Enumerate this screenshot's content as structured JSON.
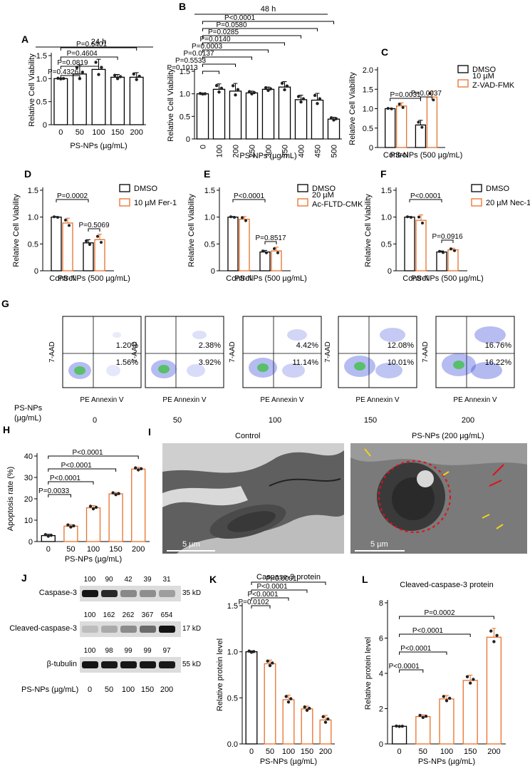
{
  "colors": {
    "dmso": "#000000",
    "treat": "#E8702A",
    "bar_fill": "#ffffff",
    "fill_k": "#ffffff",
    "flow_blue": "#2c3fd6",
    "em_bg": "#6a6a6a",
    "redline": "#e0101a",
    "yellow_arrow": "#f2d21b"
  },
  "panels": {
    "A": {
      "label": "A",
      "title": "24 h",
      "ylabel": "Relative Cell Viability",
      "xlabel": "PS-NPs (µg/mL)",
      "categories": [
        "0",
        "50",
        "100",
        "150",
        "200"
      ],
      "values": [
        1.0,
        1.1,
        1.2,
        1.03,
        1.03
      ],
      "errors": [
        0.01,
        0.2,
        0.22,
        0.06,
        0.1
      ],
      "ylim": [
        0,
        1.5
      ],
      "yticks": [
        "0",
        "0.5",
        "1.0",
        "1.5"
      ],
      "pvalues": [
        "P=0.4326",
        "P=0.0819",
        "P=0.4604",
        "P=0.6401"
      ]
    },
    "B": {
      "label": "B",
      "title": "48 h",
      "ylabel": "Relative Cell Viability",
      "xlabel": "PS-NPs (µg/mL)",
      "categories": [
        "0",
        "100",
        "200",
        "250",
        "300",
        "350",
        "400",
        "450",
        "500"
      ],
      "values": [
        1.0,
        1.1,
        1.06,
        1.02,
        1.1,
        1.15,
        0.87,
        0.86,
        0.44
      ],
      "errors": [
        0.01,
        0.12,
        0.17,
        0.04,
        0.05,
        0.12,
        0.1,
        0.15,
        0.04
      ],
      "ylim": [
        0,
        1.5
      ],
      "yticks": [
        "0",
        "0.5",
        "1.0",
        "1.5"
      ],
      "pvalues": [
        "P=0.1013",
        "P=0.5533",
        "P=0.0137",
        "P=0.0003",
        "P=0.0140",
        "P=0.0285",
        "P=0.0580",
        "P<0.0001"
      ]
    },
    "C": {
      "label": "C",
      "ylabel": "Relative Cell Viability",
      "groups": [
        "Control",
        "PS-NPs (500 µg/mL)"
      ],
      "legend": [
        "DMSO",
        "10 µM Z-VAD-FMK"
      ],
      "values": [
        [
          1.0,
          1.07
        ],
        [
          0.58,
          1.3
        ]
      ],
      "errors": [
        [
          0.01,
          0.08
        ],
        [
          0.12,
          0.15
        ]
      ],
      "ylim": [
        0,
        2.0
      ],
      "yticks": [
        "0",
        "0.5",
        "1.0",
        "1.5",
        "2.0"
      ],
      "pvalues": [
        "P=0.0031",
        "P=0.0037"
      ]
    },
    "D": {
      "label": "D",
      "ylabel": "Relative Cell Viability",
      "groups": [
        "Control",
        "PS-NPs (500 µg/mL)"
      ],
      "legend": [
        "DMSO",
        "10 µM Fer-1"
      ],
      "values": [
        [
          1.0,
          0.89
        ],
        [
          0.52,
          0.58
        ]
      ],
      "errors": [
        [
          0.01,
          0.09
        ],
        [
          0.06,
          0.1
        ]
      ],
      "ylim": [
        0,
        1.5
      ],
      "yticks": [
        "0",
        "0.5",
        "1.0",
        "1.5"
      ],
      "pvalues": [
        "P=0.0002",
        "P=0.5069"
      ]
    },
    "E": {
      "label": "E",
      "ylabel": "Relative Cell Viability",
      "groups": [
        "Control",
        "PS-NPs (500 µg/mL)"
      ],
      "legend": [
        "DMSO",
        "20 µM Ac-FLTD-CMK"
      ],
      "values": [
        [
          1.0,
          0.96
        ],
        [
          0.35,
          0.37
        ]
      ],
      "errors": [
        [
          0.01,
          0.05
        ],
        [
          0.03,
          0.07
        ]
      ],
      "ylim": [
        0,
        1.5
      ],
      "yticks": [
        "0",
        "0.5",
        "1.0",
        "1.5"
      ],
      "pvalues": [
        "P<0.0001",
        "P=0.8517"
      ]
    },
    "F": {
      "label": "F",
      "ylabel": "Relative Cell Viability",
      "groups": [
        "Control",
        "PS-NPs (500 µg/mL)"
      ],
      "legend": [
        "DMSO",
        "20 µM Nec-1"
      ],
      "values": [
        [
          1.0,
          0.94
        ],
        [
          0.35,
          0.39
        ]
      ],
      "errors": [
        [
          0.01,
          0.1
        ],
        [
          0.02,
          0.03
        ]
      ],
      "ylim": [
        0,
        1.5
      ],
      "yticks": [
        "0",
        "0.5",
        "1.0",
        "1.5"
      ],
      "pvalues": [
        "P<0.0001",
        "P=0.0916"
      ]
    },
    "G": {
      "label": "G",
      "row_label": "PS-NPs (µg/mL)",
      "xaxis": "PE Annexin V",
      "yaxis": "7-AAD",
      "plots": [
        {
          "conc": "0",
          "upper": "1.20%",
          "lower": "1.56%"
        },
        {
          "conc": "50",
          "upper": "2.38%",
          "lower": "3.92%"
        },
        {
          "conc": "100",
          "upper": "4.42%",
          "lower": "11.14%"
        },
        {
          "conc": "150",
          "upper": "12.08%",
          "lower": "10.01%"
        },
        {
          "conc": "200",
          "upper": "16.76%",
          "lower": "16.22%"
        }
      ]
    },
    "H": {
      "label": "H",
      "ylabel": "Apoptosis rate (%)",
      "xlabel": "PS-NPs (µg/mL)",
      "categories": [
        "0",
        "50",
        "100",
        "150",
        "200"
      ],
      "values": [
        2.8,
        7.2,
        15.8,
        22.3,
        33.9
      ],
      "errors": [
        0.6,
        0.8,
        1.0,
        0.7,
        0.8
      ],
      "ylim": [
        0,
        40
      ],
      "yticks": [
        "0",
        "10",
        "20",
        "30",
        "40"
      ],
      "pvalues": [
        "P=0.0033",
        "P<0.0001",
        "P<0.0001",
        "P<0.0001"
      ]
    },
    "I": {
      "label": "I",
      "left_title": "Control",
      "right_title": "PS-NPs (200 µg/mL)",
      "scale": "5 µm"
    },
    "J": {
      "label": "J",
      "rows": [
        {
          "name": "Caspase-3",
          "size": "35 kD",
          "numbers": [
            "100",
            "90",
            "42",
            "39",
            "31"
          ]
        },
        {
          "name": "Cleaved-caspase-3",
          "size": "17 kD",
          "numbers": [
            "100",
            "162",
            "262",
            "367",
            "654"
          ]
        },
        {
          "name": "β-tubulin",
          "size": "55 kD",
          "numbers": [
            "100",
            "98",
            "99",
            "99",
            "97"
          ]
        }
      ],
      "xlabel": "PS-NPs (µg/mL)",
      "lanes": [
        "0",
        "50",
        "100",
        "150",
        "200"
      ]
    },
    "K": {
      "label": "K",
      "title": "Caspase-3 protein",
      "ylabel": "Relative protein level",
      "xlabel": "PS-NPs (µg/mL)",
      "categories": [
        "0",
        "50",
        "100",
        "150",
        "200"
      ],
      "values": [
        1.0,
        0.87,
        0.48,
        0.38,
        0.26
      ],
      "errors": [
        0.01,
        0.04,
        0.05,
        0.03,
        0.05
      ],
      "ylim": [
        0,
        1.5
      ],
      "yticks": [
        "0.0",
        "0.5",
        "1.0",
        "1.5"
      ],
      "pvalues": [
        "P=0.0102",
        "P<0.0001",
        "P<0.0001",
        "P<0.0001"
      ]
    },
    "L": {
      "label": "L",
      "title": "Cleaved-caspase-3 protein",
      "ylabel": "Relative protein level",
      "xlabel": "PS-NPs (µg/mL)",
      "categories": [
        "0",
        "50",
        "100",
        "150",
        "200"
      ],
      "values": [
        1.0,
        1.55,
        2.55,
        3.6,
        6.05
      ],
      "errors": [
        0.02,
        0.1,
        0.2,
        0.3,
        0.5
      ],
      "ylim": [
        0,
        8
      ],
      "yticks": [
        "0",
        "2",
        "4",
        "6",
        "8"
      ],
      "pvalues": [
        "P<0.0001",
        "P<0.0001",
        "P<0.0001",
        "P=0.0002"
      ]
    }
  },
  "chart_data": [
    {
      "type": "bar",
      "title": "24 h",
      "categories": [
        "0",
        "50",
        "100",
        "150",
        "200"
      ],
      "values": [
        1.0,
        1.1,
        1.2,
        1.03,
        1.03
      ],
      "xlabel": "PS-NPs (µg/mL)",
      "ylabel": "Relative Cell Viability",
      "ylim": [
        0,
        1.5
      ]
    },
    {
      "type": "bar",
      "title": "48 h",
      "categories": [
        "0",
        "100",
        "200",
        "250",
        "300",
        "350",
        "400",
        "450",
        "500"
      ],
      "values": [
        1.0,
        1.1,
        1.06,
        1.02,
        1.1,
        1.15,
        0.87,
        0.86,
        0.44
      ],
      "xlabel": "PS-NPs (µg/mL)",
      "ylabel": "Relative Cell Viability",
      "ylim": [
        0,
        1.5
      ]
    },
    {
      "type": "bar",
      "title": "",
      "categories": [
        "Control",
        "PS-NPs (500 µg/mL)"
      ],
      "series": [
        {
          "name": "DMSO",
          "values": [
            1.0,
            0.58
          ]
        },
        {
          "name": "10 µM Z-VAD-FMK",
          "values": [
            1.07,
            1.3
          ]
        }
      ],
      "ylim": [
        0,
        2.0
      ]
    },
    {
      "type": "bar",
      "title": "",
      "categories": [
        "Control",
        "PS-NPs (500 µg/mL)"
      ],
      "series": [
        {
          "name": "DMSO",
          "values": [
            1.0,
            0.52
          ]
        },
        {
          "name": "10 µM Fer-1",
          "values": [
            0.89,
            0.58
          ]
        }
      ],
      "ylim": [
        0,
        1.5
      ]
    },
    {
      "type": "bar",
      "title": "",
      "categories": [
        "Control",
        "PS-NPs (500 µg/mL)"
      ],
      "series": [
        {
          "name": "DMSO",
          "values": [
            1.0,
            0.35
          ]
        },
        {
          "name": "20 µM Ac-FLTD-CMK",
          "values": [
            0.96,
            0.37
          ]
        }
      ],
      "ylim": [
        0,
        1.5
      ]
    },
    {
      "type": "bar",
      "title": "",
      "categories": [
        "Control",
        "PS-NPs (500 µg/mL)"
      ],
      "series": [
        {
          "name": "DMSO",
          "values": [
            1.0,
            0.35
          ]
        },
        {
          "name": "20 µM Nec-1",
          "values": [
            0.94,
            0.39
          ]
        }
      ],
      "ylim": [
        0,
        1.5
      ]
    },
    {
      "type": "bar",
      "title": "",
      "categories": [
        "0",
        "50",
        "100",
        "150",
        "200"
      ],
      "values": [
        2.8,
        7.2,
        15.8,
        22.3,
        33.9
      ],
      "xlabel": "PS-NPs (µg/mL)",
      "ylabel": "Apoptosis rate (%)",
      "ylim": [
        0,
        40
      ]
    },
    {
      "type": "bar",
      "title": "Caspase-3 protein",
      "categories": [
        "0",
        "50",
        "100",
        "150",
        "200"
      ],
      "values": [
        1.0,
        0.87,
        0.48,
        0.38,
        0.26
      ],
      "ylim": [
        0,
        1.5
      ]
    },
    {
      "type": "bar",
      "title": "Cleaved-caspase-3 protein",
      "categories": [
        "0",
        "50",
        "100",
        "150",
        "200"
      ],
      "values": [
        1.0,
        1.55,
        2.55,
        3.6,
        6.05
      ],
      "ylim": [
        0,
        8
      ]
    }
  ]
}
